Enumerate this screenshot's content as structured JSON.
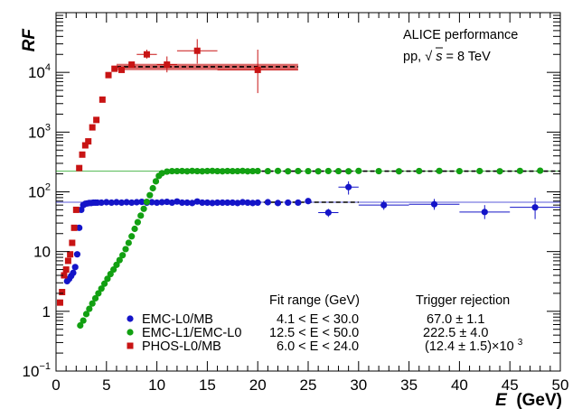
{
  "chart_data": {
    "type": "scatter",
    "title": "",
    "xlabel": "E",
    "xunit": "(GeV)",
    "ylabel": "RF",
    "xlim": [
      0,
      50
    ],
    "ylim": [
      0.1,
      100000
    ],
    "yscale": "log",
    "x_ticks": [
      0,
      5,
      10,
      15,
      20,
      25,
      30,
      35,
      40,
      45,
      50
    ],
    "y_ticks": [
      {
        "value": 0.1,
        "base": "10",
        "exp": "−1"
      },
      {
        "value": 1,
        "label": "1"
      },
      {
        "value": 10,
        "label": "10"
      },
      {
        "value": 100,
        "base": "10",
        "exp": "2"
      },
      {
        "value": 1000,
        "base": "10",
        "exp": "3"
      },
      {
        "value": 10000,
        "base": "10",
        "exp": "4"
      }
    ],
    "annotations": {
      "experiment": "ALICE performance",
      "collision_prefix": "pp, ",
      "sqrt_symbol": "√",
      "sqrt_var": "s",
      "collision_suffix": " = 8 TeV",
      "fit_range_header": "Fit range (GeV)",
      "trigger_rejection_header": "Trigger rejection"
    },
    "series": [
      {
        "name": "EMC-L0/MB",
        "color": "#1414c8",
        "marker": "circle",
        "fit_range_text": "4.1 < E < 30.0",
        "rejection_text": "67.0 ± 1.1",
        "fit": {
          "value": 67.0,
          "x_from": 4.1,
          "x_to": 30.0,
          "extend_to": 50
        },
        "points": [
          [
            1.1,
            3.2
          ],
          [
            1.3,
            3.5
          ],
          [
            1.5,
            3.9
          ],
          [
            1.7,
            4.4
          ],
          [
            1.9,
            5.5
          ],
          [
            2.1,
            9
          ],
          [
            2.3,
            25
          ],
          [
            2.5,
            50
          ],
          [
            2.7,
            60
          ],
          [
            2.9,
            63
          ],
          [
            3.1,
            64
          ],
          [
            3.3,
            65
          ],
          [
            3.5,
            65
          ],
          [
            3.7,
            66
          ],
          [
            3.9,
            66
          ],
          [
            4.1,
            66
          ],
          [
            4.5,
            66
          ],
          [
            5.0,
            67
          ],
          [
            5.5,
            66
          ],
          [
            6.0,
            67
          ],
          [
            6.5,
            66
          ],
          [
            7.0,
            67
          ],
          [
            7.5,
            66
          ],
          [
            8.0,
            67
          ],
          [
            8.5,
            68
          ],
          [
            9.0,
            66
          ],
          [
            9.5,
            67
          ],
          [
            10.0,
            66
          ],
          [
            10.5,
            67
          ],
          [
            11.0,
            68
          ],
          [
            11.5,
            66
          ],
          [
            12.0,
            69
          ],
          [
            12.5,
            66
          ],
          [
            13.0,
            66
          ],
          [
            13.5,
            65
          ],
          [
            14.0,
            69
          ],
          [
            14.5,
            66
          ],
          [
            15.0,
            66
          ],
          [
            15.5,
            65
          ],
          [
            16.0,
            66
          ],
          [
            16.5,
            66
          ],
          [
            17.0,
            66
          ],
          [
            17.5,
            66
          ],
          [
            18.0,
            65
          ],
          [
            18.5,
            67
          ],
          [
            19.0,
            66
          ],
          [
            19.5,
            65
          ],
          [
            20.0,
            66
          ],
          [
            21.0,
            67
          ],
          [
            22.0,
            65
          ],
          [
            23.0,
            66
          ],
          [
            24.0,
            66
          ],
          [
            25.0,
            70
          ],
          [
            27.0,
            45
          ],
          [
            29.0,
            120
          ],
          [
            32.5,
            60
          ],
          [
            37.5,
            62
          ],
          [
            42.5,
            46
          ],
          [
            47.5,
            55
          ]
        ],
        "errors": [
          {
            "x": 27.0,
            "y": 45,
            "ex": 1.0,
            "ylo": 38,
            "yhi": 52
          },
          {
            "x": 29.0,
            "y": 120,
            "ex": 1.0,
            "ylo": 90,
            "yhi": 150
          },
          {
            "x": 32.5,
            "y": 60,
            "ex": 2.5,
            "ylo": 50,
            "yhi": 72
          },
          {
            "x": 37.5,
            "y": 62,
            "ex": 2.5,
            "ylo": 50,
            "yhi": 76
          },
          {
            "x": 42.5,
            "y": 46,
            "ex": 2.5,
            "ylo": 35,
            "yhi": 60
          },
          {
            "x": 47.5,
            "y": 55,
            "ex": 2.5,
            "ylo": 35,
            "yhi": 80
          }
        ]
      },
      {
        "name": "EMC-L1/EMC-L0",
        "color": "#12a012",
        "marker": "circle",
        "fit_range_text": "12.5 < E < 50.0",
        "rejection_text": "222.5 ± 4.0",
        "fit": {
          "value": 222.5,
          "x_from": 12.5,
          "x_to": 50.0,
          "extend_to": 50
        },
        "points": [
          [
            2.4,
            0.58
          ],
          [
            2.7,
            0.7
          ],
          [
            3.0,
            0.9
          ],
          [
            3.3,
            1.1
          ],
          [
            3.6,
            1.35
          ],
          [
            3.9,
            1.65
          ],
          [
            4.2,
            2.0
          ],
          [
            4.5,
            2.4
          ],
          [
            4.8,
            2.9
          ],
          [
            5.1,
            3.5
          ],
          [
            5.4,
            4.2
          ],
          [
            5.7,
            5.0
          ],
          [
            6.0,
            6.0
          ],
          [
            6.3,
            7.2
          ],
          [
            6.6,
            8.7
          ],
          [
            6.9,
            11
          ],
          [
            7.2,
            14
          ],
          [
            7.5,
            18
          ],
          [
            7.8,
            24
          ],
          [
            8.1,
            31
          ],
          [
            8.4,
            40
          ],
          [
            8.7,
            52
          ],
          [
            9.0,
            68
          ],
          [
            9.3,
            88
          ],
          [
            9.6,
            115
          ],
          [
            9.9,
            150
          ],
          [
            10.2,
            185
          ],
          [
            10.5,
            205
          ],
          [
            11.0,
            218
          ],
          [
            11.5,
            222
          ],
          [
            12.0,
            222
          ],
          [
            12.5,
            223
          ],
          [
            13.0,
            221
          ],
          [
            13.5,
            224
          ],
          [
            14.0,
            222
          ],
          [
            14.5,
            221
          ],
          [
            15.0,
            223
          ],
          [
            15.5,
            224
          ],
          [
            16.0,
            222
          ],
          [
            16.5,
            221
          ],
          [
            17.0,
            223
          ],
          [
            17.5,
            222
          ],
          [
            18.0,
            222
          ],
          [
            18.5,
            224
          ],
          [
            19.0,
            221
          ],
          [
            19.5,
            222
          ],
          [
            20.0,
            223
          ],
          [
            21.0,
            222
          ],
          [
            22.0,
            224
          ],
          [
            23.0,
            221
          ],
          [
            24.0,
            223
          ],
          [
            25.0,
            222
          ],
          [
            26.0,
            221
          ],
          [
            27.0,
            223
          ],
          [
            28.0,
            222
          ],
          [
            29.0,
            221
          ],
          [
            30.0,
            224
          ],
          [
            32.0,
            222
          ],
          [
            34.0,
            221
          ],
          [
            36.0,
            223
          ],
          [
            38.0,
            224
          ],
          [
            40.0,
            222
          ],
          [
            42.0,
            223
          ],
          [
            44.0,
            221
          ],
          [
            46.0,
            224
          ],
          [
            48.0,
            226
          ]
        ],
        "errors": []
      },
      {
        "name": "PHOS-L0/MB",
        "color": "#c81414",
        "marker": "square",
        "fit_range_text": "6.0 < E < 24.0",
        "rejection_text": "(12.4 ± 1.5)×10",
        "rejection_exp": "3",
        "fit": {
          "value": 12400,
          "x_from": 6.0,
          "x_to": 24.0,
          "extend_to": 24,
          "band_lo": 10900,
          "band_hi": 13900
        },
        "points": [
          [
            0.4,
            1.4
          ],
          [
            0.6,
            2.1
          ],
          [
            0.8,
            4.0
          ],
          [
            1.0,
            5.0
          ],
          [
            1.2,
            7
          ],
          [
            1.4,
            9
          ],
          [
            1.6,
            14
          ],
          [
            1.8,
            25
          ],
          [
            2.0,
            50
          ],
          [
            2.3,
            250
          ],
          [
            2.6,
            420
          ],
          [
            2.9,
            600
          ],
          [
            3.2,
            700
          ],
          [
            3.6,
            1200
          ],
          [
            4.0,
            1600
          ],
          [
            4.6,
            3500
          ],
          [
            5.2,
            9000
          ],
          [
            5.8,
            11500
          ],
          [
            6.5,
            11000
          ],
          [
            7.5,
            13500
          ],
          [
            9.0,
            20000
          ],
          [
            11.0,
            13500
          ],
          [
            14.0,
            23000
          ],
          [
            20.0,
            11000
          ]
        ],
        "errors": [
          {
            "x": 9.0,
            "y": 20000,
            "ex": 1.0,
            "ylo": 17000,
            "yhi": 24000
          },
          {
            "x": 11.0,
            "y": 13500,
            "ex": 1.0,
            "ylo": 10000,
            "yhi": 18500
          },
          {
            "x": 14.0,
            "y": 23000,
            "ex": 2.0,
            "ylo": 14000,
            "yhi": 36000
          },
          {
            "x": 20.0,
            "y": 11000,
            "ex": 4.0,
            "ylo": 4500,
            "yhi": 24000
          }
        ]
      }
    ]
  }
}
